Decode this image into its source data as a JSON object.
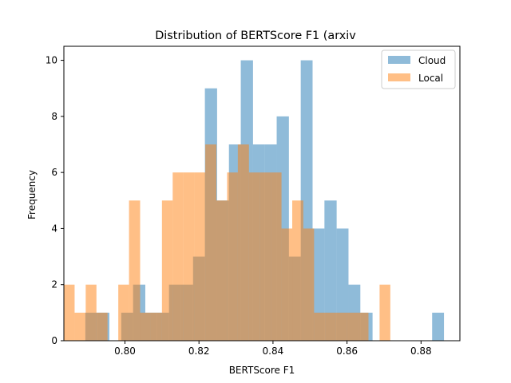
{
  "chart_data": {
    "type": "histogram",
    "title": "Distribution of BERTScore F1 (arxiv",
    "xlabel": "BERTScore F1",
    "ylabel": "Frequency",
    "xlim": [
      0.7835,
      0.8905
    ],
    "ylim": [
      0,
      10.5
    ],
    "xticks": [
      0.8,
      0.82,
      0.84,
      0.86,
      0.88
    ],
    "xtick_labels": [
      "0.80",
      "0.82",
      "0.84",
      "0.86",
      "0.88"
    ],
    "yticks": [
      0,
      2,
      4,
      6,
      8,
      10
    ],
    "ytick_labels": [
      "0",
      "2",
      "4",
      "6",
      "8",
      "10"
    ],
    "legend_position": "top-right",
    "grid": false,
    "series": [
      {
        "name": "Cloud",
        "color": "#1f77b4",
        "alpha": 0.5,
        "bins": [
          [
            0.7893,
            0.7926,
            1
          ],
          [
            0.7926,
            0.7958,
            1
          ],
          [
            0.7958,
            0.799,
            0
          ],
          [
            0.799,
            0.8022,
            1
          ],
          [
            0.8022,
            0.8055,
            2
          ],
          [
            0.8055,
            0.8087,
            1
          ],
          [
            0.8087,
            0.8119,
            1
          ],
          [
            0.8119,
            0.8152,
            2
          ],
          [
            0.8152,
            0.8184,
            2
          ],
          [
            0.8184,
            0.8216,
            3
          ],
          [
            0.8216,
            0.8249,
            9
          ],
          [
            0.8249,
            0.8281,
            5
          ],
          [
            0.8281,
            0.8313,
            7
          ],
          [
            0.8313,
            0.8346,
            10
          ],
          [
            0.8346,
            0.8378,
            7
          ],
          [
            0.8378,
            0.841,
            7
          ],
          [
            0.841,
            0.8443,
            8
          ],
          [
            0.8443,
            0.8475,
            3
          ],
          [
            0.8475,
            0.8507,
            10
          ],
          [
            0.8507,
            0.8539,
            4
          ],
          [
            0.8539,
            0.8572,
            5
          ],
          [
            0.8572,
            0.8604,
            4
          ],
          [
            0.8604,
            0.8636,
            2
          ],
          [
            0.8636,
            0.8669,
            1
          ],
          [
            0.8669,
            0.8701,
            0
          ],
          [
            0.8701,
            0.8733,
            0
          ],
          [
            0.8733,
            0.8766,
            0
          ],
          [
            0.8766,
            0.8798,
            0
          ],
          [
            0.8798,
            0.883,
            0
          ],
          [
            0.883,
            0.8862,
            1
          ]
        ]
      },
      {
        "name": "Local",
        "color": "#ff7f0e",
        "alpha": 0.5,
        "bins": [
          [
            0.7835,
            0.7864,
            2
          ],
          [
            0.7864,
            0.7894,
            1
          ],
          [
            0.7894,
            0.7923,
            2
          ],
          [
            0.7923,
            0.7953,
            1
          ],
          [
            0.7953,
            0.7982,
            0
          ],
          [
            0.7982,
            0.8011,
            2
          ],
          [
            0.8011,
            0.8041,
            5
          ],
          [
            0.8041,
            0.807,
            1
          ],
          [
            0.807,
            0.81,
            1
          ],
          [
            0.81,
            0.8129,
            5
          ],
          [
            0.8129,
            0.8158,
            6
          ],
          [
            0.8158,
            0.8188,
            6
          ],
          [
            0.8188,
            0.8217,
            6
          ],
          [
            0.8217,
            0.8247,
            7
          ],
          [
            0.8247,
            0.8276,
            5
          ],
          [
            0.8276,
            0.8305,
            6
          ],
          [
            0.8305,
            0.8335,
            7
          ],
          [
            0.8335,
            0.8364,
            6
          ],
          [
            0.8364,
            0.8394,
            6
          ],
          [
            0.8394,
            0.8423,
            6
          ],
          [
            0.8423,
            0.8452,
            4
          ],
          [
            0.8452,
            0.8482,
            5
          ],
          [
            0.8482,
            0.8511,
            4
          ],
          [
            0.8511,
            0.8541,
            1
          ],
          [
            0.8541,
            0.857,
            1
          ],
          [
            0.857,
            0.8599,
            1
          ],
          [
            0.8599,
            0.8629,
            1
          ],
          [
            0.8629,
            0.8658,
            1
          ],
          [
            0.8658,
            0.8688,
            0
          ],
          [
            0.8688,
            0.8717,
            2
          ]
        ]
      }
    ]
  }
}
